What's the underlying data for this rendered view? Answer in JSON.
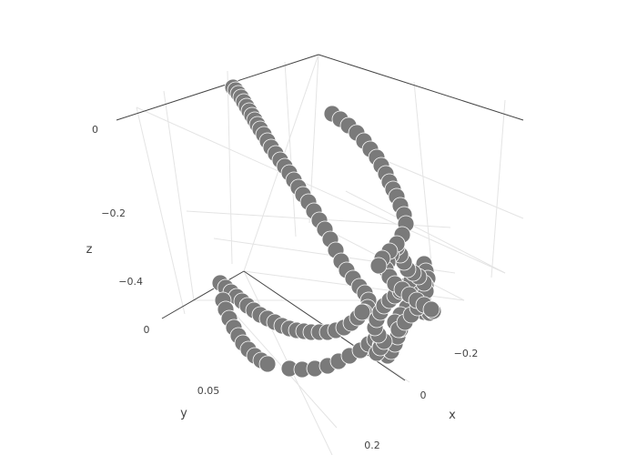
{
  "chart_data": {
    "type": "scatter3d",
    "marker_color": "#7a7a7a",
    "axes": {
      "x": {
        "title": "x",
        "ticks": [
          {
            "value": -0.2,
            "label": "−0.2"
          },
          {
            "value": 0,
            "label": "0"
          },
          {
            "value": 0.2,
            "label": "0.2"
          }
        ]
      },
      "y": {
        "title": "y",
        "ticks": [
          {
            "value": 0,
            "label": "0"
          },
          {
            "value": 0.05,
            "label": "0.05"
          }
        ]
      },
      "z": {
        "title": "z",
        "ticks": [
          {
            "value": 0,
            "label": "0"
          },
          {
            "value": -0.2,
            "label": "−0.2"
          },
          {
            "value": -0.4,
            "label": "−0.4"
          }
        ]
      }
    },
    "grid": true,
    "series": [
      {
        "points": [
          [
            256,
            96
          ],
          [
            259,
            99
          ],
          [
            262,
            103
          ],
          [
            265,
            107
          ],
          [
            268,
            112
          ],
          [
            271,
            117
          ],
          [
            274,
            122
          ],
          [
            277,
            127
          ],
          [
            280,
            132
          ],
          [
            283,
            137
          ],
          [
            286,
            142
          ],
          [
            290,
            148
          ],
          [
            294,
            155
          ],
          [
            298,
            162
          ],
          [
            303,
            169
          ],
          [
            308,
            176
          ],
          [
            313,
            183
          ],
          [
            318,
            190
          ],
          [
            323,
            198
          ],
          [
            328,
            206
          ],
          [
            333,
            214
          ],
          [
            339,
            222
          ],
          [
            345,
            232
          ],
          [
            351,
            242
          ],
          [
            357,
            252
          ],
          [
            363,
            263
          ],
          [
            369,
            275
          ],
          [
            375,
            287
          ],
          [
            381,
            297
          ],
          [
            388,
            306
          ],
          [
            395,
            315
          ],
          [
            401,
            322
          ],
          [
            405,
            330
          ],
          [
            404,
            338
          ],
          [
            400,
            343
          ],
          [
            242,
            311
          ],
          [
            248,
            316
          ],
          [
            254,
            321
          ],
          [
            260,
            326
          ],
          [
            266,
            331
          ],
          [
            272,
            336
          ],
          [
            279,
            341
          ],
          [
            286,
            346
          ],
          [
            294,
            350
          ],
          [
            302,
            354
          ],
          [
            310,
            358
          ],
          [
            318,
            361
          ],
          [
            326,
            363
          ],
          [
            334,
            364
          ],
          [
            342,
            365
          ],
          [
            351,
            365
          ],
          [
            360,
            365
          ],
          [
            369,
            363
          ],
          [
            378,
            360
          ],
          [
            386,
            355
          ],
          [
            393,
            349
          ],
          [
            398,
            343
          ],
          [
            245,
            330
          ],
          [
            248,
            340
          ],
          [
            252,
            350
          ],
          [
            257,
            360
          ],
          [
            262,
            369
          ],
          [
            267,
            377
          ],
          [
            273,
            384
          ],
          [
            280,
            391
          ],
          [
            287,
            396
          ],
          [
            294,
            400
          ],
          [
            318,
            405
          ],
          [
            332,
            406
          ],
          [
            346,
            405
          ],
          [
            360,
            402
          ],
          [
            372,
            397
          ],
          [
            384,
            391
          ],
          [
            396,
            385
          ],
          [
            405,
            378
          ],
          [
            412,
            373
          ],
          [
            418,
            380
          ],
          [
            422,
            387
          ],
          [
            426,
            391
          ],
          [
            430,
            386
          ],
          [
            434,
            378
          ],
          [
            437,
            370
          ],
          [
            440,
            362
          ],
          [
            442,
            354
          ],
          [
            445,
            347
          ],
          [
            450,
            343
          ],
          [
            458,
            342
          ],
          [
            466,
            343
          ],
          [
            472,
            344
          ],
          [
            476,
            342
          ],
          [
            414,
            388
          ],
          [
            418,
            382
          ],
          [
            422,
            375
          ],
          [
            416,
            368
          ],
          [
            412,
            360
          ],
          [
            414,
            351
          ],
          [
            418,
            343
          ],
          [
            422,
            336
          ],
          [
            428,
            330
          ],
          [
            434,
            325
          ],
          [
            440,
            320
          ],
          [
            446,
            314
          ],
          [
            452,
            308
          ],
          [
            458,
            302
          ],
          [
            463,
            296
          ],
          [
            466,
            290
          ],
          [
            468,
            298
          ],
          [
            470,
            306
          ],
          [
            468,
            314
          ],
          [
            462,
            322
          ],
          [
            455,
            330
          ],
          [
            447,
            338
          ],
          [
            440,
            346
          ],
          [
            434,
            354
          ],
          [
            438,
            362
          ],
          [
            445,
            354
          ],
          [
            452,
            346
          ],
          [
            459,
            338
          ],
          [
            465,
            330
          ],
          [
            468,
            320
          ],
          [
            466,
            311
          ],
          [
            460,
            304
          ],
          [
            454,
            300
          ],
          [
            448,
            296
          ],
          [
            444,
            288
          ],
          [
            440,
            280
          ],
          [
            436,
            272
          ],
          [
            430,
            280
          ],
          [
            426,
            288
          ],
          [
            424,
            296
          ],
          [
            428,
            304
          ],
          [
            434,
            312
          ],
          [
            442,
            318
          ],
          [
            450,
            324
          ],
          [
            458,
            330
          ],
          [
            466,
            335
          ],
          [
            474,
            340
          ],
          [
            365,
            125
          ],
          [
            374,
            131
          ],
          [
            383,
            138
          ],
          [
            392,
            146
          ],
          [
            400,
            155
          ],
          [
            407,
            164
          ],
          [
            414,
            173
          ],
          [
            419,
            182
          ],
          [
            424,
            191
          ],
          [
            428,
            200
          ],
          [
            432,
            208
          ],
          [
            436,
            216
          ],
          [
            440,
            226
          ],
          [
            444,
            236
          ],
          [
            446,
            246
          ],
          [
            442,
            258
          ],
          [
            436,
            268
          ],
          [
            428,
            276
          ],
          [
            420,
            284
          ],
          [
            416,
            292
          ]
        ]
      }
    ]
  }
}
